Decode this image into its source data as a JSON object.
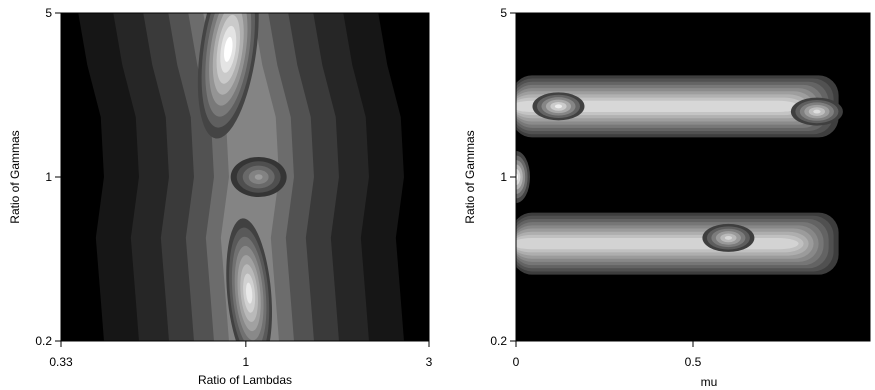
{
  "chart_data": [
    {
      "type": "heatmap",
      "style": "filled grayscale contour",
      "title": "",
      "xlabel": "Ratio of Lambdas",
      "ylabel": "Ratio of Gammas",
      "x_scale": "log",
      "y_scale": "log",
      "xlim": [
        0.33,
        3
      ],
      "ylim": [
        0.2,
        5
      ],
      "x_ticks": [
        {
          "value": 0.33,
          "label": "0.33"
        },
        {
          "value": 1,
          "label": "1"
        },
        {
          "value": 3,
          "label": "3"
        }
      ],
      "y_ticks": [
        {
          "value": 0.2,
          "label": "0.2"
        },
        {
          "value": 1,
          "label": "1"
        },
        {
          "value": 5,
          "label": "5"
        }
      ],
      "ridge": [
        {
          "y": 5,
          "x": 0.9
        },
        {
          "y": 3,
          "x": 0.95
        },
        {
          "y": 1.8,
          "x": 1.03
        },
        {
          "y": 1,
          "x": 1.05
        },
        {
          "y": 0.55,
          "x": 1.0
        },
        {
          "y": 0.3,
          "x": 1.03
        },
        {
          "y": 0.2,
          "x": 1.05
        }
      ],
      "peaks": [
        {
          "x": 0.9,
          "y": 3.5,
          "level": 1.0
        },
        {
          "x": 1.02,
          "y": 0.32,
          "level": 0.9
        },
        {
          "x": 1.08,
          "y": 1.0,
          "level": 0.55
        }
      ],
      "colors": {
        "low": "#000000",
        "high": "#ffffff"
      },
      "grid": false,
      "legend": "none"
    },
    {
      "type": "heatmap",
      "style": "filled grayscale contour",
      "title": "",
      "xlabel": "mu",
      "ylabel": "Ratio of Gammas",
      "x_scale": "linear",
      "y_scale": "log",
      "xlim": [
        0,
        1
      ],
      "ylim": [
        0.2,
        5
      ],
      "x_ticks": [
        {
          "value": 0,
          "label": "0"
        },
        {
          "value": 0.5,
          "label": "0.5"
        }
      ],
      "y_ticks": [
        {
          "value": 0.2,
          "label": "0.2"
        },
        {
          "value": 1,
          "label": "1"
        },
        {
          "value": 5,
          "label": "5"
        }
      ],
      "bands": [
        {
          "y_center": 2.0,
          "x_from": 0,
          "x_to": 0.9,
          "level": 0.82
        },
        {
          "y_center": 0.52,
          "x_from": 0,
          "x_to": 0.9,
          "level": 0.8
        }
      ],
      "peaks": [
        {
          "x": 0.0,
          "y": 1.0,
          "level": 1.0
        },
        {
          "x": 0.12,
          "y": 2.0,
          "level": 0.92
        },
        {
          "x": 0.85,
          "y": 1.9,
          "level": 0.85
        },
        {
          "x": 0.6,
          "y": 0.55,
          "level": 0.82
        }
      ],
      "colors": {
        "low": "#000000",
        "high": "#ffffff"
      },
      "grid": false,
      "legend": "none"
    }
  ]
}
